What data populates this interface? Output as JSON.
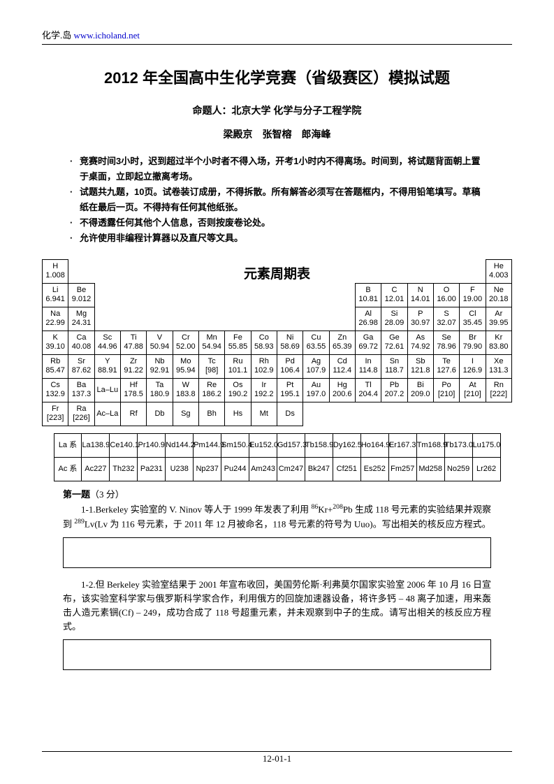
{
  "header": {
    "site_name": "化学.岛",
    "url_text": "www.icholand.net"
  },
  "title": "2012 年全国高中生化学竞赛（省级赛区）模拟试题",
  "subtitle_prefix": "命题人：",
  "subtitle_body": "北京大学 化学与分子工程学院",
  "authors": "梁殿京　张智榕　郎海峰",
  "rules": [
    "竞赛时间3小时，迟到超过半个小时者不得入场，开考1小时内不得离场。时间到，将试题背面朝上置于桌面，立即起立撤离考场。",
    "试题共九题，10页。试卷装订成册，不得拆散。所有解答必须写在答题框内，不得用铅笔填写。草稿纸在最后一页。不得持有任何其他纸张。",
    "不得透露任何其他个人信息，否则按废卷论处。",
    "允许使用非编程计算器以及直尺等文具。"
  ],
  "pt_title": "元素周期表",
  "pt": {
    "r1": [
      [
        "H",
        "1.008"
      ],
      [
        "He",
        "4.003"
      ]
    ],
    "r2": [
      [
        "Li",
        "6.941"
      ],
      [
        "Be",
        "9.012"
      ],
      [
        "B",
        "10.81"
      ],
      [
        "C",
        "12.01"
      ],
      [
        "N",
        "14.01"
      ],
      [
        "O",
        "16.00"
      ],
      [
        "F",
        "19.00"
      ],
      [
        "Ne",
        "20.18"
      ]
    ],
    "r3": [
      [
        "Na",
        "22.99"
      ],
      [
        "Mg",
        "24.31"
      ],
      [
        "Al",
        "26.98"
      ],
      [
        "Si",
        "28.09"
      ],
      [
        "P",
        "30.97"
      ],
      [
        "S",
        "32.07"
      ],
      [
        "Cl",
        "35.45"
      ],
      [
        "Ar",
        "39.95"
      ]
    ],
    "r4": [
      [
        "K",
        "39.10"
      ],
      [
        "Ca",
        "40.08"
      ],
      [
        "Sc",
        "44.96"
      ],
      [
        "Ti",
        "47.88"
      ],
      [
        "V",
        "50.94"
      ],
      [
        "Cr",
        "52.00"
      ],
      [
        "Mn",
        "54.94"
      ],
      [
        "Fe",
        "55.85"
      ],
      [
        "Co",
        "58.93"
      ],
      [
        "Ni",
        "58.69"
      ],
      [
        "Cu",
        "63.55"
      ],
      [
        "Zn",
        "65.39"
      ],
      [
        "Ga",
        "69.72"
      ],
      [
        "Ge",
        "72.61"
      ],
      [
        "As",
        "74.92"
      ],
      [
        "Se",
        "78.96"
      ],
      [
        "Br",
        "79.90"
      ],
      [
        "Kr",
        "83.80"
      ]
    ],
    "r5": [
      [
        "Rb",
        "85.47"
      ],
      [
        "Sr",
        "87.62"
      ],
      [
        "Y",
        "88.91"
      ],
      [
        "Zr",
        "91.22"
      ],
      [
        "Nb",
        "92.91"
      ],
      [
        "Mo",
        "95.94"
      ],
      [
        "Tc",
        "[98]"
      ],
      [
        "Ru",
        "101.1"
      ],
      [
        "Rh",
        "102.9"
      ],
      [
        "Pd",
        "106.4"
      ],
      [
        "Ag",
        "107.9"
      ],
      [
        "Cd",
        "112.4"
      ],
      [
        "In",
        "114.8"
      ],
      [
        "Sn",
        "118.7"
      ],
      [
        "Sb",
        "121.8"
      ],
      [
        "Te",
        "127.6"
      ],
      [
        "I",
        "126.9"
      ],
      [
        "Xe",
        "131.3"
      ]
    ],
    "r6": [
      [
        "Cs",
        "132.9"
      ],
      [
        "Ba",
        "137.3"
      ],
      [
        "La–Lu",
        ""
      ],
      [
        "Hf",
        "178.5"
      ],
      [
        "Ta",
        "180.9"
      ],
      [
        "W",
        "183.8"
      ],
      [
        "Re",
        "186.2"
      ],
      [
        "Os",
        "190.2"
      ],
      [
        "Ir",
        "192.2"
      ],
      [
        "Pt",
        "195.1"
      ],
      [
        "Au",
        "197.0"
      ],
      [
        "Hg",
        "200.6"
      ],
      [
        "Tl",
        "204.4"
      ],
      [
        "Pb",
        "207.2"
      ],
      [
        "Bi",
        "209.0"
      ],
      [
        "Po",
        "[210]"
      ],
      [
        "At",
        "[210]"
      ],
      [
        "Rn",
        "[222]"
      ]
    ],
    "r7": [
      [
        "Fr",
        "[223]"
      ],
      [
        "Ra",
        "[226]"
      ],
      [
        "Ac–La",
        ""
      ],
      [
        "Rf",
        ""
      ],
      [
        "Db",
        ""
      ],
      [
        "Sg",
        ""
      ],
      [
        "Bh",
        ""
      ],
      [
        "Hs",
        ""
      ],
      [
        "Mt",
        ""
      ],
      [
        "Ds",
        ""
      ]
    ]
  },
  "la": {
    "head": [
      "La 系",
      "La",
      "Ce",
      "Pr",
      "Nd",
      "Pm",
      "Sm",
      "Eu",
      "Gd",
      "Tb",
      "Dy",
      "Ho",
      "Er",
      "Tm",
      "Tb",
      "Lu"
    ],
    "la_mass": [
      "",
      "138.9",
      "140.1",
      "140.9",
      "144.2",
      "144.9",
      "150.4",
      "152.0",
      "157.3",
      "158.9",
      "162.5",
      "164.9",
      "167.3",
      "168.9",
      "173.0",
      "175.0"
    ],
    "ac_head": [
      "Ac 系",
      "Ac",
      "Th",
      "Pa",
      "U",
      "Np",
      "Pu",
      "Am",
      "Cm",
      "Bk",
      "Cf",
      "Es",
      "Fm",
      "Md",
      "No",
      "Lr"
    ],
    "ac_mass": [
      "",
      "227",
      "232",
      "231",
      "238",
      "237",
      "244",
      "243",
      "247",
      "247",
      "251",
      "252",
      "257",
      "258",
      "259",
      "262"
    ]
  },
  "q1": {
    "head_bold": "第一题",
    "head_rest": "（3 分）",
    "p1_a": "1-1.Berkeley 实验室的 V. Ninov 等人于 1999 年发表了利用 ",
    "p1_sup1": "86",
    "p1_b": "Kr+",
    "p1_sup2": "208",
    "p1_c": "Pb 生成 118 号元素的实验结果并观察到 ",
    "p1_sup3": "289",
    "p1_d": "Lv(Lv 为 116 号元素，于 2011 年 12 月被命名，118 号元素的符号为 Uuo)。写出相关的核反应方程式。",
    "p2": "1-2.但 Berkeley 实验室结果于 2001 年宣布收回，美国劳伦斯·利弗莫尔国家实验室 2006 年 10 月 16 日宣布，该实验室科学家与俄罗斯科学家合作，利用俄方的回旋加速器设备，将许多钙 – 48 离子加速，用来轰击人造元素锎(Cf) – 249，成功合成了 118 号超重元素，并未观察到中子的生成。请写出相关的核反应方程式。"
  },
  "footer": "12-01-1"
}
